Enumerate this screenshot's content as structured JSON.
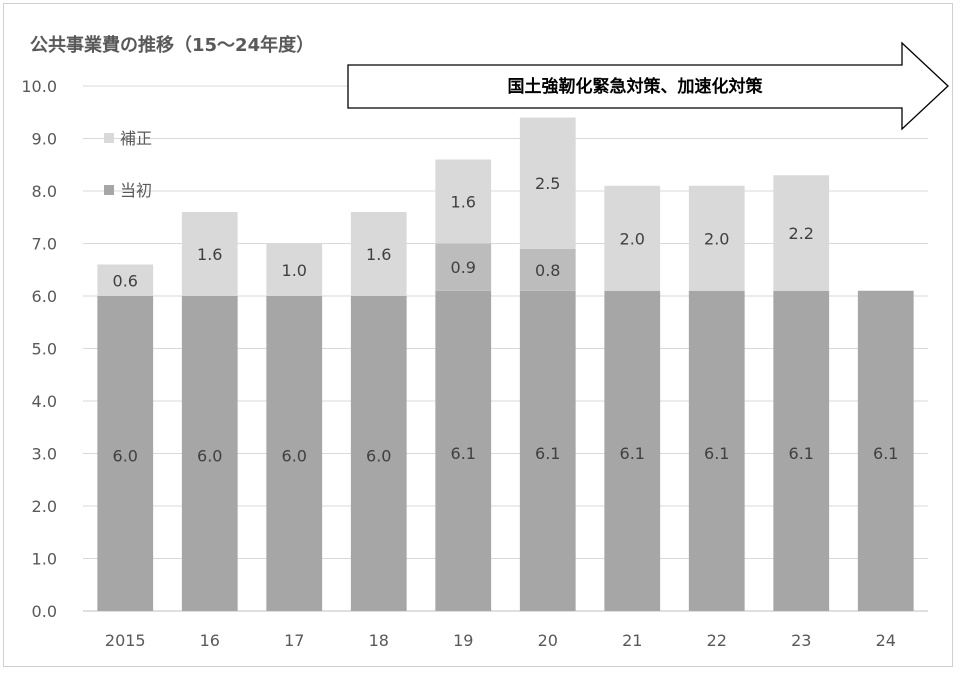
{
  "title": "公共事業費の推移（15～24年度）",
  "colors": {
    "initial": "#a6a6a6",
    "supplementary": "#d9d9d9",
    "grid": "#d9d9d9",
    "axis": "#bfbfbf"
  },
  "annotation": {
    "text": "国土強靭化緊急対策、加速化対策"
  },
  "chart_data": {
    "type": "bar",
    "stacked": true,
    "title": "公共事業費の推移（15～24年度）",
    "categories": [
      "2015",
      "16",
      "17",
      "18",
      "19",
      "20",
      "21",
      "22",
      "23",
      "24"
    ],
    "series": [
      {
        "name": "当初",
        "values": [
          6.0,
          6.0,
          6.0,
          6.0,
          6.1,
          6.1,
          6.1,
          6.1,
          6.1,
          6.1
        ],
        "labels": [
          "6.0",
          "6.0",
          "6.0",
          "6.0",
          "6.1",
          "6.1",
          "6.1",
          "6.1",
          "6.1",
          "6.1"
        ]
      },
      {
        "name": "補正",
        "values": [
          0.6,
          1.6,
          1.0,
          1.6,
          1.6,
          2.5,
          2.0,
          2.0,
          2.2,
          null
        ],
        "labels": [
          "0.6",
          "1.6",
          "1.0",
          "1.6",
          "1.6",
          "2.5",
          "2.0",
          "2.0",
          "2.2",
          null
        ]
      }
    ],
    "hatched_segments": [
      {
        "category": "19",
        "value": 0.9,
        "label": "0.9"
      },
      {
        "category": "20",
        "value": 0.8,
        "label": "0.8"
      }
    ],
    "ylim": [
      0,
      10
    ],
    "yticks": [
      "0.0",
      "1.0",
      "2.0",
      "3.0",
      "4.0",
      "5.0",
      "6.0",
      "7.0",
      "8.0",
      "9.0",
      "10.0"
    ],
    "grid": true,
    "legend": "top-left"
  }
}
